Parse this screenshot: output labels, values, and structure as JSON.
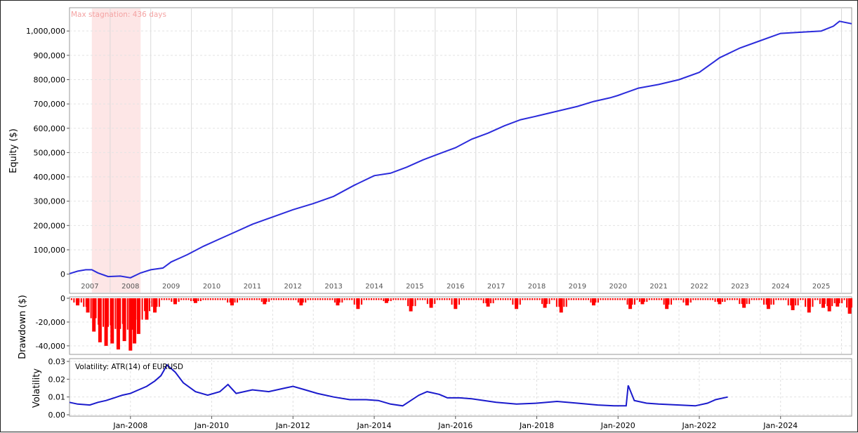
{
  "chart_data": [
    {
      "type": "line",
      "panel": "equity",
      "ylabel": "Equity ($)",
      "ylim": [
        -30000,
        1090000
      ],
      "yticks": [
        0,
        100000,
        200000,
        300000,
        400000,
        500000,
        600000,
        700000,
        800000,
        900000,
        1000000
      ],
      "ytick_labels": [
        "0",
        "100,000",
        "200,000",
        "300,000",
        "400,000",
        "500,000",
        "600,000",
        "700,000",
        "800,000",
        "900,000",
        "1,000,000"
      ],
      "xlim": [
        2006.5,
        2025.75
      ],
      "year_labels": [
        "2007",
        "2008",
        "2009",
        "2010",
        "2011",
        "2012",
        "2013",
        "2014",
        "2015",
        "2016",
        "2017",
        "2018",
        "2019",
        "2020",
        "2021",
        "2022",
        "2023",
        "2024",
        "2025"
      ],
      "year_positions": [
        2007.0,
        2008.0,
        2009.0,
        2010.0,
        2011.0,
        2012.0,
        2013.0,
        2014.0,
        2015.0,
        2016.0,
        2017.0,
        2018.0,
        2019.0,
        2020.0,
        2021.0,
        2022.0,
        2023.0,
        2024.0,
        2025.0
      ],
      "stagnation_label": "Max stagnation: 436 days",
      "stagnation_range": [
        2007.05,
        2008.25
      ],
      "series": [
        {
          "color": "#2b2bdb",
          "x": [
            2006.5,
            2006.7,
            2006.9,
            2007.05,
            2007.2,
            2007.45,
            2007.75,
            2008.0,
            2008.25,
            2008.5,
            2008.8,
            2009.0,
            2009.4,
            2009.8,
            2010.2,
            2010.6,
            2011.0,
            2011.5,
            2012.0,
            2012.5,
            2013.0,
            2013.5,
            2014.0,
            2014.4,
            2014.8,
            2015.2,
            2015.6,
            2016.0,
            2016.4,
            2016.8,
            2017.2,
            2017.6,
            2018.0,
            2018.5,
            2019.0,
            2019.4,
            2019.8,
            2020.0,
            2020.5,
            2021.0,
            2021.5,
            2022.0,
            2022.5,
            2023.0,
            2023.5,
            2024.0,
            2024.5,
            2025.0,
            2025.3,
            2025.45,
            2025.75
          ],
          "y": [
            2000,
            12000,
            18000,
            18000,
            5000,
            -10000,
            -8000,
            -15000,
            5000,
            18000,
            25000,
            50000,
            80000,
            115000,
            145000,
            175000,
            205000,
            235000,
            265000,
            290000,
            320000,
            365000,
            405000,
            415000,
            440000,
            470000,
            495000,
            520000,
            555000,
            580000,
            610000,
            635000,
            650000,
            670000,
            690000,
            710000,
            725000,
            735000,
            765000,
            780000,
            800000,
            830000,
            890000,
            930000,
            960000,
            990000,
            995000,
            1000000,
            1020000,
            1040000,
            1030000
          ]
        }
      ]
    },
    {
      "type": "bar",
      "panel": "drawdown",
      "ylabel": "Drawdown ($)",
      "ylim": [
        -46000,
        0
      ],
      "yticks": [
        0,
        -20000,
        -40000
      ],
      "ytick_labels": [
        "0",
        "-20,000",
        "-40,000"
      ],
      "color": "#ff0000",
      "x": [
        2006.7,
        2006.95,
        2007.1,
        2007.25,
        2007.4,
        2007.55,
        2007.7,
        2007.85,
        2008.0,
        2008.1,
        2008.2,
        2008.4,
        2008.6,
        2009.1,
        2009.6,
        2010.5,
        2011.3,
        2012.2,
        2013.1,
        2013.6,
        2014.3,
        2014.9,
        2015.4,
        2016.0,
        2016.8,
        2017.5,
        2018.2,
        2018.6,
        2019.4,
        2020.3,
        2020.6,
        2021.2,
        2021.7,
        2022.5,
        2023.1,
        2023.7,
        2024.3,
        2024.7,
        2025.05,
        2025.2,
        2025.4,
        2025.7
      ],
      "y": [
        -6000,
        -12000,
        -28000,
        -37000,
        -40000,
        -38000,
        -43000,
        -36000,
        -44000,
        -38000,
        -30000,
        -18000,
        -12000,
        -5000,
        -4000,
        -6000,
        -5000,
        -6000,
        -6000,
        -9000,
        -4000,
        -11000,
        -8000,
        -9000,
        -7000,
        -9000,
        -8000,
        -12000,
        -6000,
        -9000,
        -5000,
        -9000,
        -6000,
        -5000,
        -8000,
        -9000,
        -10000,
        -12000,
        -8000,
        -11000,
        -7000,
        -13000
      ]
    },
    {
      "type": "line",
      "panel": "volatility",
      "legend": "Volatility: ATR(14) of EURUSD",
      "ylabel": "Volatility",
      "ylim": [
        0,
        0.03
      ],
      "yticks": [
        0.0,
        0.01,
        0.02,
        0.03
      ],
      "ytick_labels": [
        "0.00",
        "0.01",
        "0.02",
        "0.03"
      ],
      "xlim": [
        2006.5,
        2025.75
      ],
      "xticks": [
        2008.0,
        2010.0,
        2012.0,
        2014.0,
        2016.0,
        2018.0,
        2020.0,
        2022.0,
        2024.0
      ],
      "xtick_labels": [
        "Jan-2008",
        "Jan-2010",
        "Jan-2012",
        "Jan-2014",
        "Jan-2016",
        "Jan-2018",
        "Jan-2020",
        "Jan-2022",
        "Jan-2024"
      ],
      "series": [
        {
          "color": "#1a1acc",
          "x": [
            2006.5,
            2006.7,
            2007.0,
            2007.2,
            2007.4,
            2007.6,
            2007.8,
            2008.0,
            2008.2,
            2008.4,
            2008.6,
            2008.75,
            2008.9,
            2009.1,
            2009.3,
            2009.6,
            2009.9,
            2010.2,
            2010.4,
            2010.6,
            2011.0,
            2011.4,
            2011.8,
            2012.0,
            2012.3,
            2012.6,
            2013.0,
            2013.4,
            2013.8,
            2014.1,
            2014.4,
            2014.7,
            2014.9,
            2015.1,
            2015.3,
            2015.6,
            2015.8,
            2016.1,
            2016.4,
            2016.7,
            2017.0,
            2017.5,
            2018.0,
            2018.5,
            2019.0,
            2019.5,
            2019.9,
            2020.2,
            2020.25,
            2020.4,
            2020.7,
            2021.0,
            2021.5,
            2021.9,
            2022.2,
            2022.4,
            2022.7
          ],
          "y": [
            0.007,
            0.006,
            0.0055,
            0.007,
            0.008,
            0.0095,
            0.011,
            0.012,
            0.014,
            0.016,
            0.019,
            0.022,
            0.028,
            0.024,
            0.018,
            0.013,
            0.011,
            0.013,
            0.017,
            0.012,
            0.014,
            0.013,
            0.015,
            0.016,
            0.014,
            0.012,
            0.01,
            0.0085,
            0.0085,
            0.008,
            0.006,
            0.005,
            0.008,
            0.011,
            0.013,
            0.0115,
            0.0095,
            0.0095,
            0.009,
            0.008,
            0.007,
            0.006,
            0.0065,
            0.0075,
            0.0065,
            0.0055,
            0.005,
            0.005,
            0.0165,
            0.008,
            0.0065,
            0.006,
            0.0055,
            0.005,
            0.0065,
            0.0085,
            0.01
          ]
        }
      ]
    }
  ]
}
